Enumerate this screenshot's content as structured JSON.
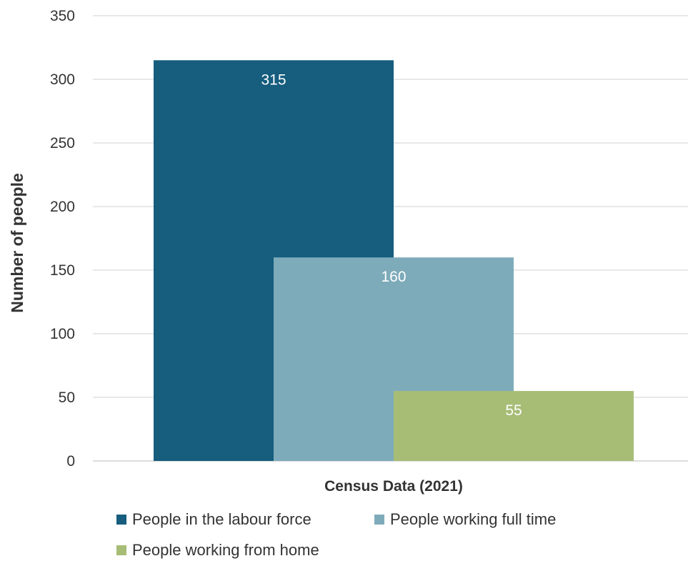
{
  "chart_data": {
    "type": "bar",
    "categories": [
      "Census Data (2021)"
    ],
    "series": [
      {
        "name": "People in the labour force",
        "values": [
          315
        ],
        "color": "#165d7e"
      },
      {
        "name": "People working full time",
        "values": [
          160
        ],
        "color": "#7eabba"
      },
      {
        "name": "People working from home",
        "values": [
          55
        ],
        "color": "#a7bd76"
      }
    ],
    "title": "",
    "xlabel": "Census Data (2021)",
    "ylabel": "Number of people",
    "ylim": [
      0,
      350
    ],
    "yticks": [
      0,
      50,
      100,
      150,
      200,
      250,
      300,
      350
    ],
    "grid": true,
    "legend_position": "bottom"
  }
}
